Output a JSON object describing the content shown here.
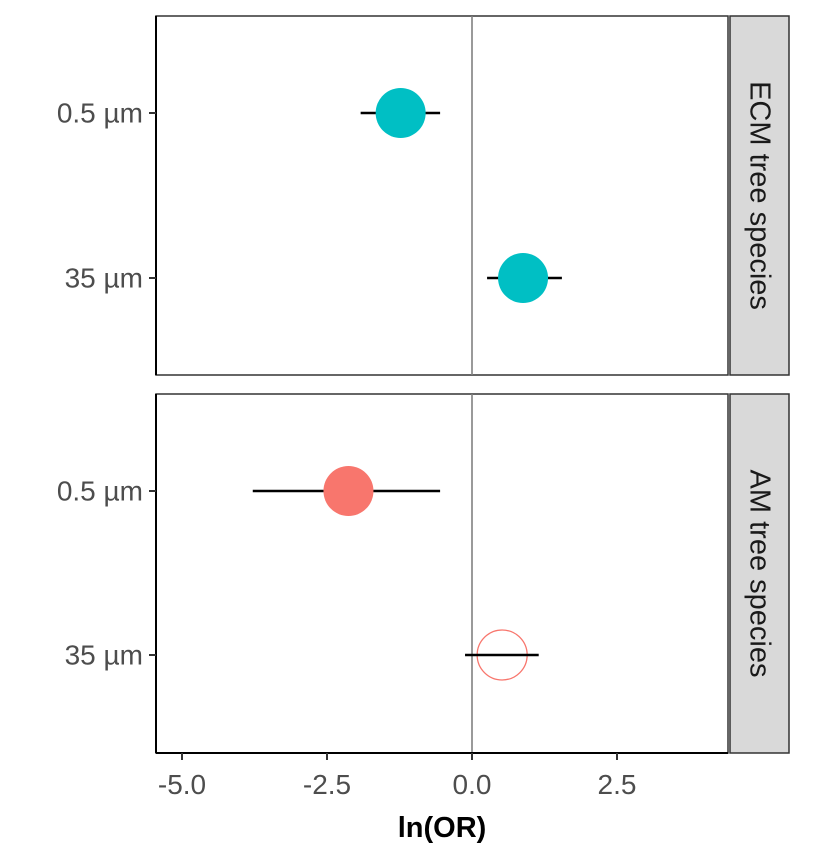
{
  "chart_data": {
    "type": "scatter",
    "subtype": "forest-plot",
    "xlabel": "ln(OR)",
    "ylabel": "",
    "xlim": [
      -5.4,
      4.5
    ],
    "x_ticks": [
      -5.0,
      -2.5,
      0.0,
      2.5
    ],
    "x_tick_labels": [
      "-5.0",
      "-2.5",
      "0.0",
      "2.5"
    ],
    "reference_line": 0,
    "categories": [
      "0.5 µm",
      "35 µm"
    ],
    "panels": [
      {
        "label": "ECM tree species",
        "color": "#00BFC4",
        "points": [
          {
            "category": "0.5 µm",
            "estimate": -1.23,
            "lower": -1.92,
            "upper": -0.55,
            "filled": true
          },
          {
            "category": "35 µm",
            "estimate": 0.88,
            "lower": 0.26,
            "upper": 1.55,
            "filled": true
          }
        ]
      },
      {
        "label": "AM tree species",
        "color": "#F8766D",
        "points": [
          {
            "category": "0.5 µm",
            "estimate": -2.13,
            "lower": -3.78,
            "upper": -0.55,
            "filled": true
          },
          {
            "category": "35 µm",
            "estimate": 0.52,
            "lower": -0.12,
            "upper": 1.15,
            "filled": false
          }
        ]
      }
    ]
  }
}
